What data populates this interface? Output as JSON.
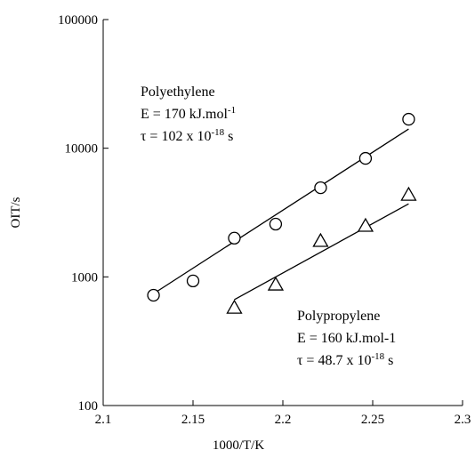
{
  "chart_data": {
    "type": "scatter",
    "xlabel": "1000/T/K",
    "ylabel": "OIT/s",
    "xlim": [
      2.1,
      2.3
    ],
    "xticks": [
      2.1,
      2.15,
      2.2,
      2.25,
      2.3
    ],
    "ylim": [
      100,
      100000
    ],
    "yticks": [
      100,
      1000,
      10000,
      100000
    ],
    "ylog": true,
    "series": [
      {
        "name": "Polyethylene",
        "marker": "circle",
        "color": "#000000",
        "x": [
          2.128,
          2.15,
          2.173,
          2.196,
          2.221,
          2.246,
          2.27
        ],
        "values": [
          720,
          930,
          2000,
          2570,
          4930,
          8340,
          16800
        ],
        "fit": {
          "x": [
            2.128,
            2.27
          ],
          "values": [
            740,
            14100
          ]
        },
        "annotation": [
          {
            "text": "Polyethylene"
          },
          {
            "text": "E = 170 kJ.mol",
            "sup": "-1"
          },
          {
            "text": "τ = 102 x 10",
            "sup": "-18",
            "suffix": " s"
          }
        ]
      },
      {
        "name": "Polypropylene",
        "marker": "triangle",
        "color": "#000000",
        "x": [
          2.173,
          2.196,
          2.221,
          2.246,
          2.27
        ],
        "values": [
          575,
          870,
          1900,
          2490,
          4340
        ],
        "fit": {
          "x": [
            2.173,
            2.27
          ],
          "values": [
            665,
            3700
          ]
        },
        "annotation": [
          {
            "text": "Polypropylene"
          },
          {
            "text": "E = 160 kJ.mol-1"
          },
          {
            "text": "τ = 48.7 x 10",
            "sup": "-18",
            "suffix": " s"
          }
        ]
      }
    ]
  }
}
